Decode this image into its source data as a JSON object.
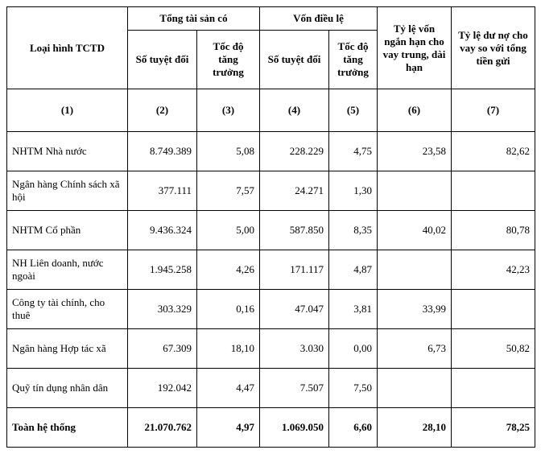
{
  "table": {
    "col_widths": [
      "150px",
      "86px",
      "78px",
      "86px",
      "60px",
      "92px",
      "104px"
    ],
    "headers": {
      "col1": "Loại hình TCTD",
      "group1": "Tổng tài sản có",
      "group2": "Vốn điều lệ",
      "sub_abs": "Số tuyệt đối",
      "sub_growth": "Tốc độ tăng trưởng",
      "sub_growth2": "Tốc độ tăng trưởng",
      "col6": "Tỷ lệ vốn ngắn hạn cho vay trung, dài hạn",
      "col7": "Tỷ lệ dư nợ cho vay so với tổng tiền gửi"
    },
    "index_row": [
      "(1)",
      "(2)",
      "(3)",
      "(4)",
      "(5)",
      "(6)",
      "(7)"
    ],
    "rows": [
      {
        "label": "NHTM Nhà nước",
        "c2": "8.749.389",
        "c3": "5,08",
        "c4": "228.229",
        "c5": "4,75",
        "c6": "23,58",
        "c7": "82,62"
      },
      {
        "label": "Ngân hàng Chính sách xã hội",
        "c2": "377.111",
        "c3": "7,57",
        "c4": "24.271",
        "c5": "1,30",
        "c6": "",
        "c7": ""
      },
      {
        "label": "NHTM Cổ phần",
        "c2": "9.436.324",
        "c3": "5,00",
        "c4": "587.850",
        "c5": "8,35",
        "c6": "40,02",
        "c7": "80,78"
      },
      {
        "label": "NH Liên doanh, nước ngoài",
        "c2": "1.945.258",
        "c3": "4,26",
        "c4": "171.117",
        "c5": "4,87",
        "c6": "",
        "c7": "42,23"
      },
      {
        "label": "Công ty tài chính, cho thuê",
        "c2": "303.329",
        "c3": "0,16",
        "c4": "47.047",
        "c5": "3,81",
        "c6": "33,99",
        "c7": ""
      },
      {
        "label": "Ngân hàng Hợp tác xã",
        "c2": "67.309",
        "c3": "18,10",
        "c4": "3.030",
        "c5": "0,00",
        "c6": "6,73",
        "c7": "50,82"
      },
      {
        "label": "Quỹ tín dụng nhân dân",
        "c2": "192.042",
        "c3": "4,47",
        "c4": "7.507",
        "c5": "7,50",
        "c6": "",
        "c7": ""
      }
    ],
    "total": {
      "label": "Toàn hệ thống",
      "c2": "21.070.762",
      "c3": "4,97",
      "c4": "1.069.050",
      "c5": "6,60",
      "c6": "28,10",
      "c7": "78,25"
    }
  }
}
